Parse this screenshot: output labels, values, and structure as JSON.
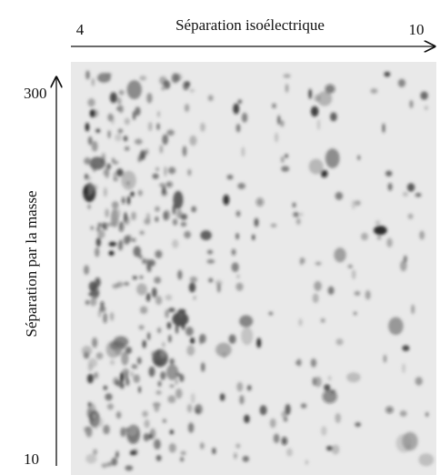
{
  "header": {
    "title": "Séparation isoélectrique",
    "x_start": "4",
    "x_end": "10"
  },
  "side": {
    "title": "Séparation par la masse",
    "y_top": "300",
    "y_bottom": "10"
  }
}
